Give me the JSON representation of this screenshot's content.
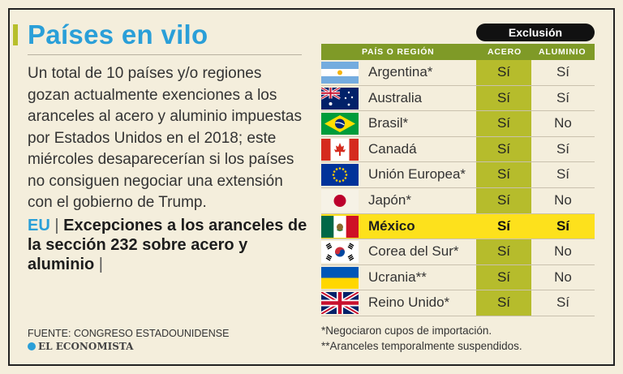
{
  "header": {
    "title": "Países en vilo",
    "intro": "Un total de 10 países y/o regiones gozan actualmente exenciones a los aranceles al acero y aluminio impuestas por Estados Unidos en el 2018; este miércoles desaparecerían si los países no consiguen negociar una extensión con el gobierno de Trump.",
    "sub_prefix": "EU",
    "sub_sep": " | ",
    "sub_text": "Excepciones a los aranceles de la sección 232 sobre acero y aluminio",
    "sub_suffix": " |"
  },
  "footer": {
    "source": "FUENTE: CONGRESO ESTADOUNIDENSE",
    "brand": "EL ECONOMISTA"
  },
  "chart_data": {
    "type": "table",
    "group_label": "Exclusión",
    "columns": [
      "PAÍS O REGIÓN",
      "ACERO",
      "ALUMINIO"
    ],
    "highlight_color": "#fde11c",
    "acero_column_color": "#b6bc2c",
    "header_color": "#7f9a27",
    "rows": [
      {
        "flag": "argentina",
        "country": "Argentina*",
        "acero": "Sí",
        "aluminio": "Sí",
        "highlight": false
      },
      {
        "flag": "australia",
        "country": "Australia",
        "acero": "Sí",
        "aluminio": "Sí",
        "highlight": false
      },
      {
        "flag": "brazil",
        "country": "Brasil*",
        "acero": "Sí",
        "aluminio": "No",
        "highlight": false
      },
      {
        "flag": "canada",
        "country": "Canadá",
        "acero": "Sí",
        "aluminio": "Sí",
        "highlight": false
      },
      {
        "flag": "eu",
        "country": "Unión Europea*",
        "acero": "Sí",
        "aluminio": "Sí",
        "highlight": false
      },
      {
        "flag": "japan",
        "country": "Japón*",
        "acero": "Sí",
        "aluminio": "No",
        "highlight": false
      },
      {
        "flag": "mexico",
        "country": "México",
        "acero": "Sí",
        "aluminio": "Sí",
        "highlight": true
      },
      {
        "flag": "south-korea",
        "country": "Corea del Sur*",
        "acero": "Sí",
        "aluminio": "No",
        "highlight": false
      },
      {
        "flag": "ukraine",
        "country": "Ucrania**",
        "acero": "Sí",
        "aluminio": "No",
        "highlight": false
      },
      {
        "flag": "uk",
        "country": "Reino Unido*",
        "acero": "Sí",
        "aluminio": "Sí",
        "highlight": false
      }
    ],
    "notes": [
      "*Negociaron cupos de importación.",
      "**Aranceles temporalmente suspendidos."
    ]
  }
}
